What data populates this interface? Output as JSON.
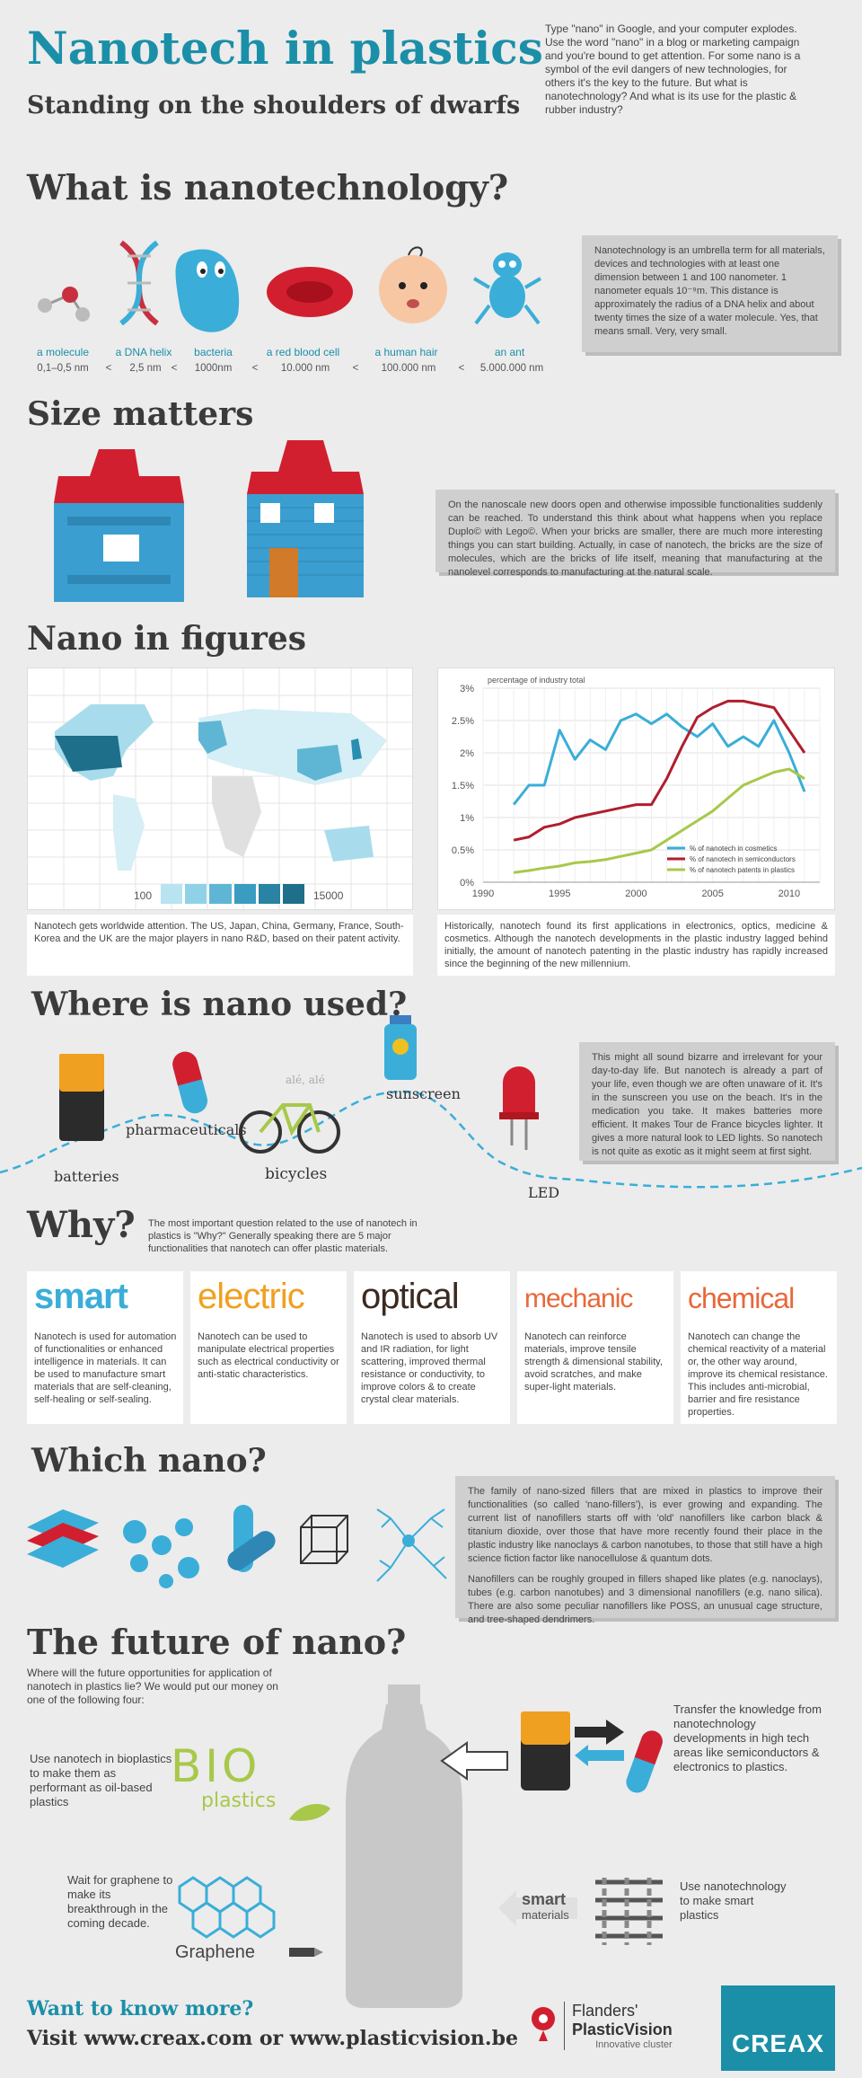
{
  "header": {
    "title": "Nanotech in plastics",
    "subtitle": "Standing on the shoulders of dwarfs",
    "intro": "Type \"nano\" in Google, and your computer explodes.  Use the word \"nano\" in a blog or marketing campaign and you're bound to get attention. For some nano is a symbol of the evil dangers of new technologies, for others it's the key to the future. But what is nanotechnology? And what is its use for the plastic & rubber industry?"
  },
  "what": {
    "title": "What is nanotechnology?",
    "items": [
      {
        "label": "a molecule",
        "size": "0,1–0,5 nm"
      },
      {
        "label": "a DNA helix",
        "size": "2,5 nm"
      },
      {
        "label": "bacteria",
        "size": "1000nm"
      },
      {
        "label": "a red blood cell",
        "size": "10.000 nm"
      },
      {
        "label": "a human hair",
        "size": "100.000 nm"
      },
      {
        "label": "an ant",
        "size": "5.000.000 nm"
      }
    ],
    "lt": "<",
    "box": "Nanotechnology is an umbrella term for all materials, devices and technologies with at least one dimension between 1 and 100 nanometer. 1 nanometer equals 10⁻⁹m. This distance is approximately the radius of a DNA helix and about twenty times the size of a water molecule. Yes, that means small. Very, very small."
  },
  "size": {
    "title": "Size matters",
    "box": "On the nanoscale new doors open and otherwise impossible functionalities suddenly can be reached. To understand this think about what happens when you replace Duplo© with Lego©. When your bricks are smaller, there are much more interesting things you can start building. Actually, in case of nanotech, the bricks are the size of molecules, which are the bricks of life itself, meaning that manufacturing at the nanolevel corresponds to manufacturing at the natural scale."
  },
  "figures": {
    "title": "Nano in figures",
    "map_legend_min": "100",
    "map_legend_max": "15000",
    "map_caption": "Nanotech gets worldwide attention. The US, Japan, China, Germany, France, South-Korea and the UK are the major players in nano R&D, based on their patent activity.",
    "chart_caption": "Historically, nanotech found its first applications in electronics, optics, medicine & cosmetics. Although the nanotech developments in the plastic industry lagged behind initially, the amount of nanotech patenting in the plastic industry has rapidly increased since the beginning of the new millennium."
  },
  "chart_data": {
    "type": "line",
    "title": "",
    "ylabel": "percentage of industry total",
    "xlabel": "",
    "xlim": [
      1990,
      2012
    ],
    "ylim": [
      0,
      3
    ],
    "x_ticks": [
      1990,
      1995,
      2000,
      2005,
      2010
    ],
    "y_ticks": [
      0,
      0.5,
      1,
      1.5,
      2,
      2.5,
      3
    ],
    "y_tick_labels": [
      "0%",
      "0.5%",
      "1%",
      "1.5%",
      "2%",
      "2.5%",
      "3%"
    ],
    "grid": true,
    "legend": "bottom-right",
    "x": [
      1992,
      1993,
      1994,
      1995,
      1996,
      1997,
      1998,
      1999,
      2000,
      2001,
      2002,
      2003,
      2004,
      2005,
      2006,
      2007,
      2008,
      2009,
      2010,
      2011
    ],
    "series": [
      {
        "name": "% of nanotech in cosmetics",
        "color": "#3aaed8",
        "values": [
          1.2,
          1.5,
          1.5,
          2.35,
          1.9,
          2.2,
          2.05,
          2.5,
          2.6,
          2.45,
          2.6,
          2.4,
          2.25,
          2.45,
          2.1,
          2.25,
          2.1,
          2.5,
          2.0,
          1.4
        ]
      },
      {
        "name": "% of nanotech in semiconductors",
        "color": "#b01e2e",
        "values": [
          0.65,
          0.7,
          0.85,
          0.9,
          1.0,
          1.05,
          1.1,
          1.15,
          1.2,
          1.2,
          1.6,
          2.1,
          2.55,
          2.7,
          2.8,
          2.8,
          2.75,
          2.7,
          2.35,
          2.0
        ]
      },
      {
        "name": "% of nanotech patents in plastics",
        "color": "#a8c84a",
        "values": [
          0.15,
          0.18,
          0.22,
          0.25,
          0.3,
          0.32,
          0.35,
          0.4,
          0.45,
          0.5,
          0.65,
          0.8,
          0.95,
          1.1,
          1.3,
          1.5,
          1.6,
          1.7,
          1.75,
          1.6
        ]
      }
    ]
  },
  "where": {
    "title": "Where is nano used?",
    "labels": [
      "batteries",
      "pharmaceuticals",
      "bicycles",
      "sunscreen",
      "LED"
    ],
    "bike_text": "alé, alé",
    "box": "This might all sound bizarre and irrelevant for your day-to-day life. But nanotech is already a part of your life, even though we are often unaware of it. It's in the sunscreen you use on the beach. It's in the medication you take. It makes batteries more efficient. It makes Tour de France bicycles lighter. It gives a more natural look to LED lights. So nanotech is not quite as exotic as it might seem at first sight."
  },
  "why": {
    "title": "Why?",
    "intro": "The most important question related to the use of nanotech in plastics is \"Why?\" Generally speaking there are 5 major functionalities that nanotech can offer plastic materials.",
    "cards": [
      {
        "title": "smart",
        "color": "#3aaed8",
        "text": "Nanotech is used for automation of functionalities or enhanced intelligence in materials. It can be used to manufacture smart materials that are self-cleaning, self-healing or self-sealing."
      },
      {
        "title": "electric",
        "color": "#f0a020",
        "text": "Nanotech can be used to manipulate electrical properties such as electrical conductivity or anti-static characteristics."
      },
      {
        "title": "optical",
        "color": "#3b2a20",
        "text": "Nanotech is used to absorb UV and IR radiation, for light scattering, improved thermal resistance or conductivity, to improve colors & to create crystal clear materials."
      },
      {
        "title": "mechanic",
        "color": "#e8683a",
        "text": "Nanotech can reinforce materials, improve tensile strength & dimensional stability, avoid scratches, and make super-light materials."
      },
      {
        "title": "chemical",
        "color": "#e8683a",
        "text": "Nanotech can change the chemical reactivity of a material or, the other way around, improve its chemical resistance. This includes anti-microbial, barrier and fire resistance properties."
      }
    ]
  },
  "which": {
    "title": "Which nano?",
    "box1": "The family of nano-sized fillers that are mixed in plastics to improve their functionalities (so called 'nano-fillers'), is ever growing and expanding. The current list of nanofillers starts off with 'old' nanofillers like carbon black & titanium dioxide, over those that have more recently found their place in the plastic industry like nanoclays & carbon nanotubes, to those that still have a high science fiction factor like nanocellulose & quantum dots.",
    "box2": "Nanofillers can be roughly grouped in fillers shaped like plates (e.g. nanoclays), tubes (e.g. carbon nanotubes) and 3 dimensional nanofillers (e.g. nano silica). There are also some peculiar nanofillers like POSS, an unusual cage structure, and tree-shaped dendrimers."
  },
  "future": {
    "title": "The future of nano?",
    "intro": "Where will the future opportunities for application of nanotech in plastics lie? We would put our money on one of the following four:",
    "bio_text": "Use nanotech in bioplastics to make them as performant as oil-based plastics",
    "bio_logo_1": "BIO",
    "bio_logo_2": "plastics",
    "transfer_text": "Transfer the knowledge from nanotechnology developments in high tech areas like semiconductors & electronics to plastics.",
    "graphene_text": "Wait for graphene to make its breakthrough in the coming decade.",
    "graphene_label": "Graphene",
    "smart_text": "Use nanotechnology to make smart plastics",
    "smart_label_1": "smart",
    "smart_label_2": "materials"
  },
  "footer": {
    "more": "Want to know more?",
    "visit": "Visit www.creax.com or www.plasticvision.be",
    "fpv_1": "Flanders'",
    "fpv_2": "PlasticVision",
    "fpv_3": "Innovative cluster",
    "creax": "CREAX"
  }
}
